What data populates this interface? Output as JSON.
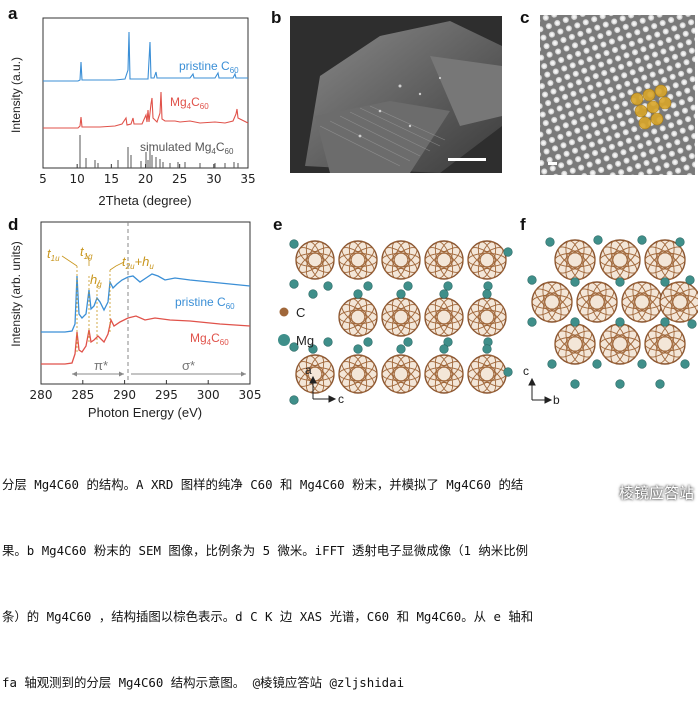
{
  "panels": {
    "a": {
      "letter": "a",
      "ylabel": "Intensity (a.u.)",
      "xlabel": "2Theta (degree)",
      "xticks": [
        "5",
        "10",
        "15",
        "20",
        "25",
        "30",
        "35"
      ],
      "labels": {
        "pristine": "pristine C",
        "pristine_sub": "60",
        "mg": "Mg",
        "mg_sub1": "4",
        "mg_c": "C",
        "mg_sub2": "60",
        "sim": "simulated Mg",
        "sim_sub1": "4",
        "sim_c": "C",
        "sim_sub2": "60"
      }
    },
    "b": {
      "letter": "b"
    },
    "c": {
      "letter": "c"
    },
    "d": {
      "letter": "d",
      "ylabel": "Intensity (arb. units)",
      "xlabel": "Photon Energy (eV)",
      "xticks": [
        "280",
        "285",
        "290",
        "295",
        "300",
        "305"
      ],
      "annotations": {
        "t1u": "t",
        "t1u_sub": "1u",
        "t1g": "t",
        "t1g_sub": "1g",
        "hg": "h",
        "hg_sub": "g",
        "t2u": "t",
        "t2u_sub": "2u",
        "hu_plus": "+h",
        "hu_sub": "u",
        "pi": "π*",
        "sigma": "σ*"
      },
      "labels": {
        "pristine": "pristine C",
        "pristine_sub": "60",
        "mg": "Mg",
        "mg_sub1": "4",
        "mg_c": "C",
        "mg_sub2": "60"
      }
    },
    "e": {
      "letter": "e",
      "legend_c": "C",
      "legend_mg": "Mg",
      "axis_a": "a",
      "axis_c": "c"
    },
    "f": {
      "letter": "f",
      "axis_c": "c",
      "axis_b": "b"
    }
  },
  "colors": {
    "blue": "#3b8fd6",
    "red": "#e0524a",
    "gray": "#666666",
    "gold": "#c8961e",
    "carbon": "#a0673a",
    "mg": "#3f8f8a"
  },
  "caption": {
    "line1": "分层 Mg4C60 的结构。A XRD 图样的纯净 C60 和 Mg4C60 粉末，并模拟了 Mg4C60 的结",
    "line2": "果。b Mg4C60 粉末的 SEM 图像，比例条为 5 微米。iFFT 透射电子显微成像（1 纳米比例",
    "line3": "条）的 Mg4C60 ，结构插图以棕色表示。d C K 边 XAS 光谱，C60 和 Mg4C60。从 e 轴和",
    "line4": "fa 轴观测到的分层 Mg4C60 结构示意图。 @棱镜应答站 @zljshidai"
  },
  "watermark": "棱镜应答站"
}
